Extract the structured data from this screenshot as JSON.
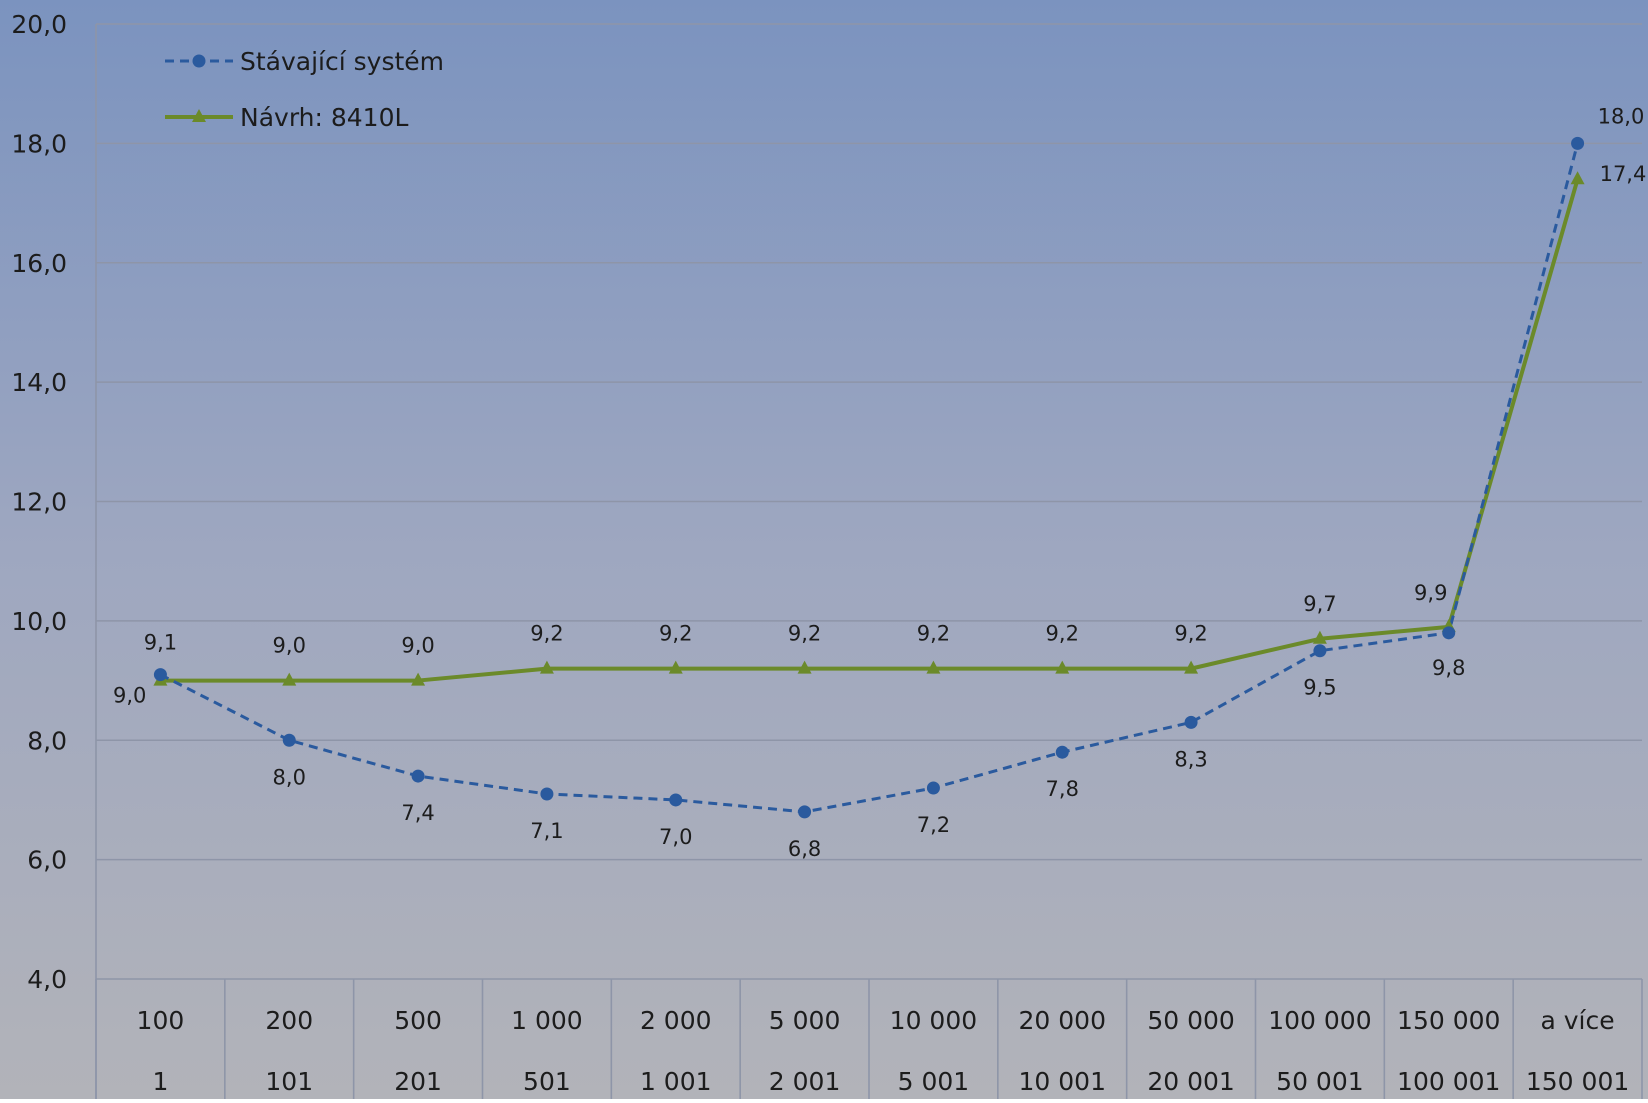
{
  "chart_data": {
    "type": "line",
    "title": "",
    "xlabel": "",
    "ylabel": "",
    "ylim": [
      4,
      20
    ],
    "yticks": [
      "4,0",
      "6,0",
      "8,0",
      "10,0",
      "12,0",
      "14,0",
      "16,0",
      "18,0",
      "20,0"
    ],
    "categories_upper": [
      "100",
      "200",
      "500",
      "1 000",
      "2 000",
      "5 000",
      "10 000",
      "20 000",
      "50 000",
      "100 000",
      "150 000",
      "a více"
    ],
    "categories_lower": [
      "1",
      "101",
      "201",
      "501",
      "1 001",
      "2 001",
      "5 001",
      "10 001",
      "20 001",
      "50 001",
      "100 001",
      "150 001"
    ],
    "grid": true,
    "legend_position": "top-left",
    "series": [
      {
        "name": "Stávající systém",
        "style": "dashed-circle",
        "color": "#2a5a9e",
        "values": [
          9.1,
          8.0,
          7.4,
          7.1,
          7.0,
          6.8,
          7.2,
          7.8,
          8.3,
          9.5,
          9.8,
          18.0
        ],
        "labels": [
          "9,1",
          "8,0",
          "7,4",
          "7,1",
          "7,0",
          "6,8",
          "7,2",
          "7,8",
          "8,3",
          "9,5",
          "9,8",
          "18,0"
        ]
      },
      {
        "name": "Návrh: 8410L",
        "style": "solid-triangle",
        "color": "#6b8a2a",
        "values": [
          9.0,
          9.0,
          9.0,
          9.2,
          9.2,
          9.2,
          9.2,
          9.2,
          9.2,
          9.7,
          9.9,
          17.4
        ],
        "labels": [
          "9,0",
          "9,0",
          "9,0",
          "9,2",
          "9,2",
          "9,2",
          "9,2",
          "9,2",
          "9,2",
          "9,7",
          "9,9",
          "17,4"
        ]
      }
    ]
  }
}
